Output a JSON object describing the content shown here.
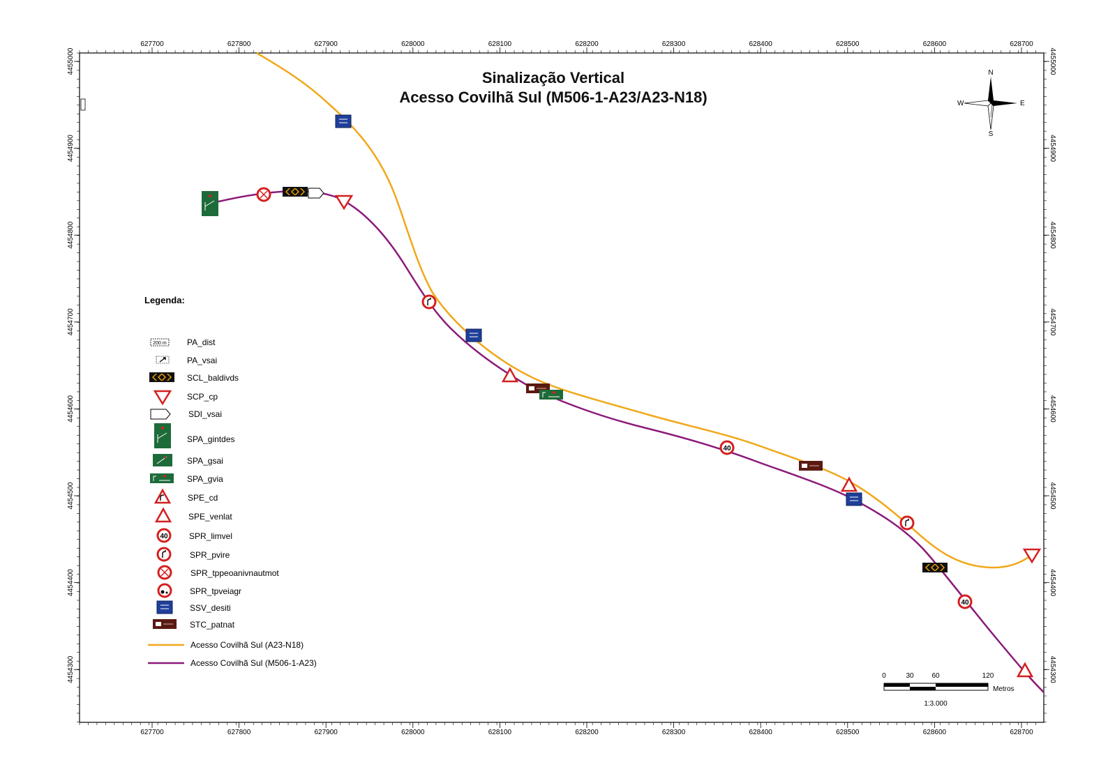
{
  "map": {
    "title_line1": "Sinalização Vertical",
    "title_line2": "Acesso Covilhã Sul (M506-1-A23/A23-N18)",
    "x_ticks": [
      "627700",
      "627800",
      "627900",
      "628000",
      "628100",
      "628200",
      "628300",
      "628400",
      "628500",
      "628600",
      "628700"
    ],
    "y_ticks": [
      "4455000",
      "4454900",
      "4454800",
      "4454700",
      "4454600",
      "4454500",
      "4454400",
      "4454300"
    ],
    "compass": {
      "n": "N",
      "s": "S",
      "e": "E",
      "w": "W"
    },
    "scale": {
      "labels": [
        "0",
        "30",
        "60",
        "120"
      ],
      "unit": "Metros",
      "ratio": "1:3.000"
    },
    "colors": {
      "road_a23_n18": "#f0a818",
      "road_m506": "#8b1a7a",
      "sign_red": "#d42020",
      "sign_green": "#1e6b3a",
      "sign_blue": "#1f3f9a",
      "sign_brown": "#5a1a12",
      "sign_orange": "#f2a000"
    }
  },
  "legend": {
    "heading": "Legenda:",
    "items": [
      {
        "icon": "pa-dist-icon",
        "label": "PA_dist"
      },
      {
        "icon": "pa-vsai-icon",
        "label": "PA_vsai"
      },
      {
        "icon": "scl-baldivds-icon",
        "label": "SCL_baldivds"
      },
      {
        "icon": "scp-cp-icon",
        "label": "SCP_cp"
      },
      {
        "icon": "sdi-vsai-icon",
        "label": "SDI_vsai"
      },
      {
        "icon": "spa-gintdes-icon",
        "label": "SPA_gintdes"
      },
      {
        "icon": "spa-gsai-icon",
        "label": "SPA_gsai"
      },
      {
        "icon": "spa-gvia-icon",
        "label": "SPA_gvia"
      },
      {
        "icon": "spe-cd-icon",
        "label": "SPE_cd"
      },
      {
        "icon": "spe-venlat-icon",
        "label": "SPE_venlat"
      },
      {
        "icon": "spr-limvel-icon",
        "label": "SPR_limvel"
      },
      {
        "icon": "spr-pvire-icon",
        "label": "SPR_pvire"
      },
      {
        "icon": "spr-tppeoanivnautmot-icon",
        "label": "SPR_tppeoanivnautmot"
      },
      {
        "icon": "spr-tpveiagr-icon",
        "label": "SPR_tpveiagr"
      },
      {
        "icon": "ssv-desiti-icon",
        "label": "SSV_desiti"
      },
      {
        "icon": "stc-patnat-icon",
        "label": "STC_patnat"
      }
    ],
    "lines": [
      {
        "label": "Acesso Covilhã Sul (A23-N18)",
        "color": "#f0a818"
      },
      {
        "label": "Acesso Covilhã Sul (M506-1-A23)",
        "color": "#8b1a7a"
      }
    ],
    "icon_texts": {
      "pa_dist": "200 m",
      "speed": "40"
    }
  }
}
